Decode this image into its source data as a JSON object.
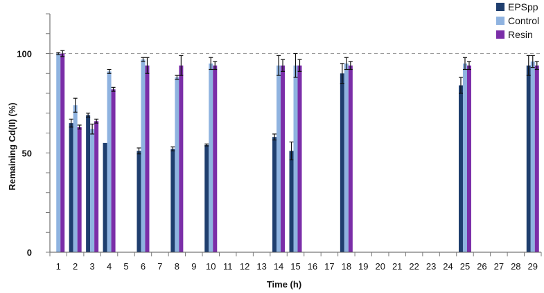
{
  "chart_data": {
    "type": "bar",
    "xlabel": "Time (h)",
    "ylabel": "Remaining Cd(II) (%)",
    "ylim": [
      0,
      120
    ],
    "yticks": [
      0,
      50,
      100
    ],
    "reference_line": 100,
    "categories": [
      "1",
      "2",
      "3",
      "4",
      "5",
      "6",
      "7",
      "8",
      "9",
      "10",
      "11",
      "12",
      "13",
      "14",
      "15",
      "16",
      "17",
      "18",
      "19",
      "20",
      "21",
      "22",
      "23",
      "24",
      "25",
      "26",
      "27",
      "28",
      "29"
    ],
    "legend_position": "top-right",
    "series": [
      {
        "name": "EPSpp",
        "color": "#1f3e6e",
        "values": [
          null,
          65,
          69,
          55,
          null,
          51,
          null,
          52,
          null,
          54,
          null,
          null,
          null,
          58,
          51,
          null,
          null,
          90,
          null,
          null,
          null,
          null,
          null,
          null,
          84,
          null,
          null,
          null,
          94
        ],
        "errors": [
          null,
          2,
          1,
          0,
          null,
          1.5,
          null,
          1,
          null,
          0.5,
          null,
          null,
          null,
          1.5,
          4.5,
          null,
          null,
          5,
          null,
          null,
          null,
          null,
          null,
          null,
          4,
          null,
          null,
          null,
          5
        ]
      },
      {
        "name": "Control",
        "color": "#8fb3e0",
        "values": [
          100,
          74,
          62,
          91,
          null,
          97,
          null,
          88,
          null,
          95,
          null,
          null,
          null,
          94,
          94,
          null,
          null,
          95,
          null,
          null,
          null,
          null,
          null,
          null,
          95,
          null,
          null,
          null,
          96
        ],
        "errors": [
          0.5,
          3.5,
          2.5,
          1,
          null,
          1,
          null,
          1,
          null,
          3,
          null,
          null,
          null,
          5,
          6,
          null,
          null,
          3,
          null,
          null,
          null,
          null,
          null,
          null,
          3,
          null,
          null,
          null,
          3
        ]
      },
      {
        "name": "Resin",
        "color": "#7b2ea8",
        "values": [
          100,
          63,
          66,
          82,
          null,
          94,
          null,
          94,
          null,
          94,
          null,
          null,
          null,
          94,
          94,
          null,
          null,
          94,
          null,
          null,
          null,
          null,
          null,
          null,
          94,
          null,
          null,
          null,
          94
        ],
        "errors": [
          1.5,
          1,
          1,
          1,
          null,
          4,
          null,
          5,
          null,
          2,
          null,
          null,
          null,
          3,
          3,
          null,
          null,
          2,
          null,
          null,
          null,
          null,
          null,
          null,
          2,
          null,
          null,
          null,
          2
        ]
      }
    ]
  }
}
